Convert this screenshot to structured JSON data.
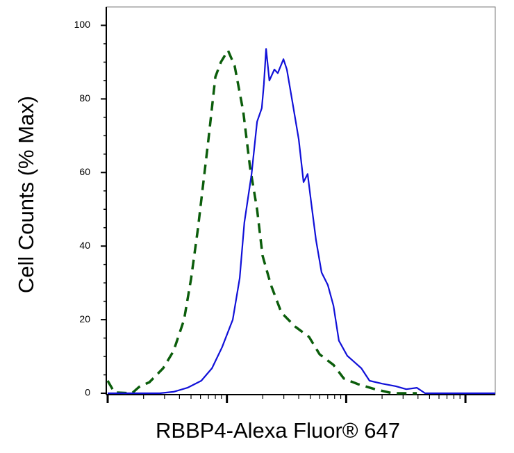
{
  "chart_data": {
    "type": "line",
    "x_label": "RBBP4-Alexa Fluor® 647",
    "y_label": "Cell Counts (% Max)",
    "xscale": "log",
    "xlim": [
      1,
      1778
    ],
    "xticks": [
      1,
      10,
      100,
      1000
    ],
    "ylim": [
      0,
      105
    ],
    "yticks": [
      0,
      20,
      40,
      60,
      80,
      100
    ],
    "series": [
      {
        "color": "#0b5d0b",
        "line_style": "dashed",
        "x": [
          1,
          1.14,
          1.6,
          1.83,
          2.24,
          2.92,
          3.57,
          4.37,
          5.0,
          5.7,
          7.0,
          8.0,
          8.9,
          10.2,
          11.6,
          13.7,
          15.6,
          17.9,
          19.9,
          23.4,
          28.6,
          37.4,
          48.9,
          59.8,
          78.2,
          95.5,
          125,
          175,
          244,
          391
        ],
        "values": [
          3.4,
          0.2,
          0,
          1.7,
          3,
          6.8,
          11.5,
          20,
          31,
          44.5,
          69,
          86,
          90,
          93.2,
          89,
          76.6,
          61.5,
          50,
          37.4,
          29.4,
          21.9,
          18.1,
          15.3,
          10.6,
          7.7,
          4,
          2.5,
          1.1,
          0,
          0
        ]
      },
      {
        "color": "#1010d8",
        "line_style": "solid",
        "x": [
          1,
          2.73,
          3.57,
          4.67,
          6.1,
          7.5,
          9.1,
          11.2,
          12.8,
          14.0,
          16.1,
          17.9,
          19.6,
          20.4,
          21.3,
          22.7,
          25.0,
          26.7,
          29.8,
          31.8,
          34.9,
          40.0,
          43.9,
          47.5,
          50.8,
          55.8,
          62.2,
          70.2,
          78.2,
          86.9,
          102,
          134,
          157,
          200,
          261,
          319,
          391,
          459,
          1493,
          1778
        ],
        "values": [
          0,
          0,
          0.4,
          1.5,
          3.4,
          6.8,
          12.5,
          20,
          31.3,
          46.4,
          59.6,
          73.8,
          77.5,
          84,
          93.6,
          85,
          88,
          87,
          90.8,
          88,
          80.4,
          69,
          57.4,
          59.6,
          52,
          41.7,
          32.8,
          29.4,
          23.8,
          14.3,
          10.2,
          6.8,
          3.4,
          2.6,
          1.9,
          1.1,
          1.5,
          0,
          0,
          0
        ]
      }
    ]
  }
}
